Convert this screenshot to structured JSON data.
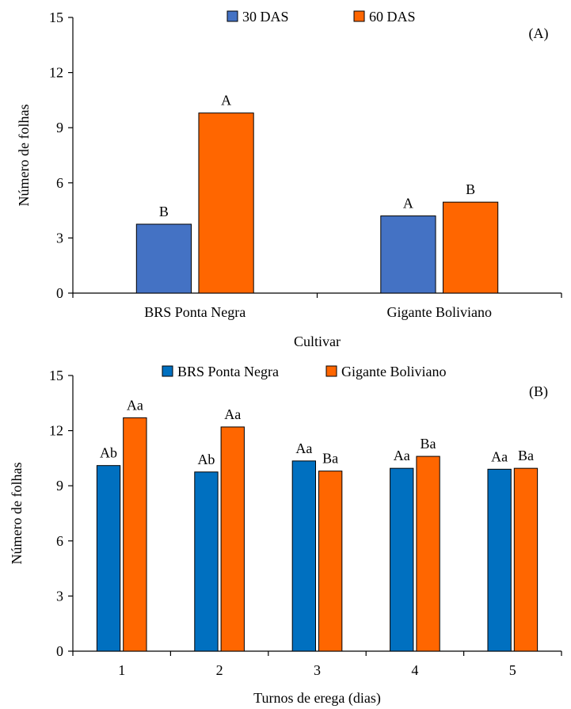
{
  "chart_data": [
    {
      "type": "bar",
      "panel_label": "(A)",
      "title": "",
      "xlabel": "Cultivar",
      "ylabel": "Número de folhas",
      "ylim": [
        0,
        15
      ],
      "yticks": [
        "0",
        "3",
        "6",
        "9",
        "12",
        "15"
      ],
      "categories": [
        "BRS Ponta Negra",
        "Gigante Boliviano"
      ],
      "series": [
        {
          "name": "30 DAS",
          "color": "#4472C4",
          "values": [
            3.75,
            4.2
          ],
          "labels": [
            "B",
            "A"
          ]
        },
        {
          "name": "60 DAS",
          "color": "#FF6600",
          "values": [
            9.8,
            4.95
          ],
          "labels": [
            "A",
            "B"
          ]
        }
      ],
      "legend": "top-center",
      "grid": false
    },
    {
      "type": "bar",
      "panel_label": "(B)",
      "title": "",
      "xlabel": "Turnos de erega (dias)",
      "ylabel": "Número de folhas",
      "ylim": [
        0,
        15
      ],
      "yticks": [
        "0",
        "3",
        "6",
        "9",
        "12",
        "15"
      ],
      "categories": [
        "1",
        "2",
        "3",
        "4",
        "5"
      ],
      "series": [
        {
          "name": "BRS Ponta Negra",
          "color": "#0070C0",
          "values": [
            10.1,
            9.75,
            10.35,
            9.95,
            9.9
          ],
          "labels": [
            "Ab",
            "Ab",
            "Aa",
            "Aa",
            "Aa"
          ]
        },
        {
          "name": "Gigante Boliviano",
          "color": "#FF6600",
          "values": [
            12.7,
            12.2,
            9.8,
            10.6,
            9.95
          ],
          "labels": [
            "Aa",
            "Aa",
            "Ba",
            "Ba",
            "Ba"
          ]
        }
      ],
      "legend": "top-center",
      "grid": false
    }
  ]
}
